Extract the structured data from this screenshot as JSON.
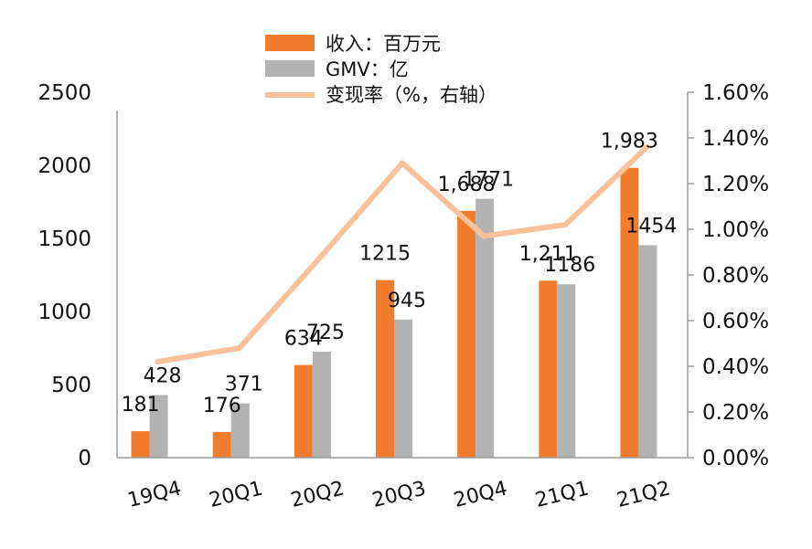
{
  "chart_data": {
    "type": "bar",
    "categories": [
      "19Q4",
      "20Q1",
      "20Q2",
      "20Q3",
      "20Q4",
      "21Q1",
      "21Q2"
    ],
    "series": [
      {
        "name": "收入：百万元",
        "kind": "bar",
        "axis": "left",
        "color": "#F07D2D",
        "values": [
          181,
          176,
          634,
          1215,
          1688,
          1211,
          1983
        ],
        "labels": [
          "181",
          "176",
          "634",
          "1215",
          "1,688",
          "1,211",
          "1,983"
        ]
      },
      {
        "name": "GMV：亿",
        "kind": "bar",
        "axis": "left",
        "color": "#B3B3B3",
        "values": [
          428,
          371,
          725,
          945,
          1771,
          1186,
          1454
        ],
        "labels": [
          "428",
          "371",
          "725",
          "945",
          "1771",
          "1186",
          "1454"
        ]
      },
      {
        "name": "变现率（%，右轴）",
        "kind": "line",
        "axis": "right",
        "color": "#F9C29A",
        "values": [
          0.42,
          0.48,
          0.88,
          1.29,
          0.97,
          1.02,
          1.36
        ]
      }
    ],
    "y_left": {
      "min": 0,
      "max": 2500,
      "ticks": [
        "0",
        "500",
        "1000",
        "1500",
        "2000",
        "2500"
      ]
    },
    "y_right": {
      "min": 0,
      "max": 1.6,
      "ticks": [
        "0.00%",
        "0.20%",
        "0.40%",
        "0.60%",
        "0.80%",
        "1.00%",
        "1.20%",
        "1.40%",
        "1.60%"
      ]
    },
    "grid": false,
    "legend": "top-center"
  }
}
